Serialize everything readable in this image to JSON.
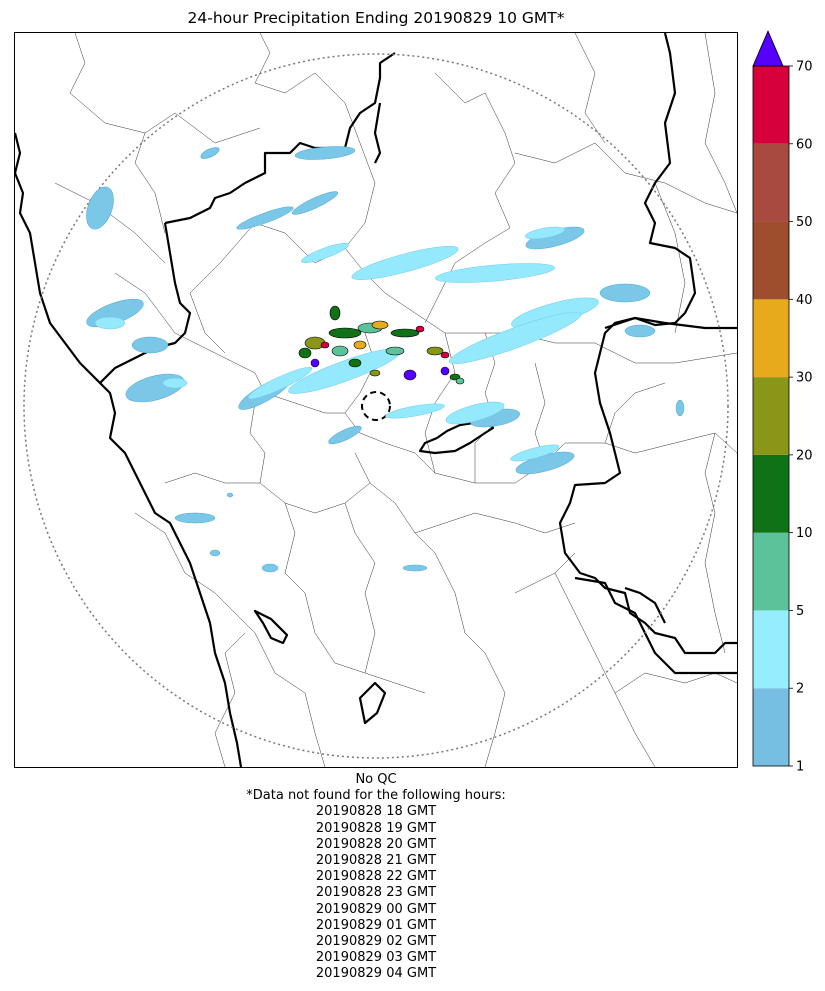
{
  "title": "24-hour Precipitation Ending 20190829 10 GMT*",
  "qc_label": "No QC",
  "missing_header": "*Data not found for the following hours:",
  "missing_hours": [
    "20190828 18 GMT",
    "20190828 19 GMT",
    "20190828 20 GMT",
    "20190828 21 GMT",
    "20190828 22 GMT",
    "20190828 23 GMT",
    "20190829 00 GMT",
    "20190829 01 GMT",
    "20190829 02 GMT",
    "20190829 03 GMT",
    "20190829 04 GMT"
  ],
  "colorbar": {
    "bounds": [
      1,
      2,
      5,
      10,
      20,
      30,
      40,
      50,
      60,
      70
    ],
    "tick_labels": [
      "1",
      "2",
      "5",
      "10",
      "20",
      "30",
      "40",
      "50",
      "60",
      "70"
    ],
    "colors": [
      "#76bfe3",
      "#96eefc",
      "#5cc29a",
      "#0f7217",
      "#8a9617",
      "#e6aa1c",
      "#9e4e2c",
      "#a84a40",
      "#d6003d"
    ],
    "extend_color": "#5500ff"
  },
  "map_colors": {
    "light_blue": "#7ac7e8",
    "cyan": "#94eafc",
    "green": "#5cc29a",
    "dark_green": "#0f7217",
    "olive": "#8a9617",
    "orange": "#e6aa1c",
    "red": "#d6003d",
    "purple": "#5500ff"
  }
}
